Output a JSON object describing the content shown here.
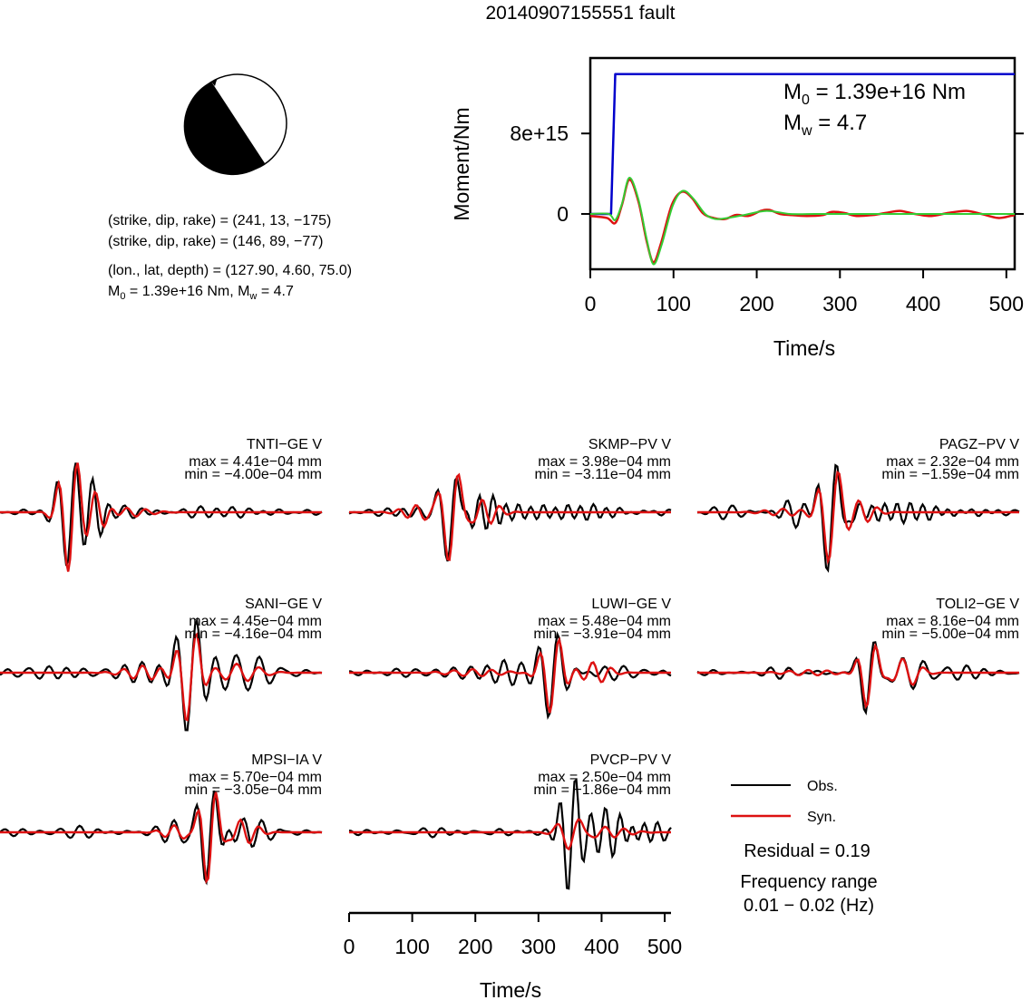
{
  "title": "20140907155551 fault",
  "mechanism": {
    "nodal_plane_1": "(strike, dip, rake) = (241, 13, −175)",
    "nodal_plane_2": "(strike, dip, rake) = (146, 89, −77)",
    "location": "(lon., lat, depth) = (127.90, 4.60, 75.0)",
    "moment_prefix": "M",
    "moment_sub": "0",
    "moment_mid": " = 1.39e+16 Nm, M",
    "mag_sub": "w",
    "mag_suffix": " = 4.7"
  },
  "moment_panel": {
    "ylabel": "Moment/Nm",
    "xlabel": "Time/s",
    "ytick_labels": [
      "0",
      "8e+15"
    ],
    "xtick_labels": [
      "0",
      "100",
      "200",
      "300",
      "400",
      "500"
    ],
    "m0_prefix": "M",
    "m0_sub": "0",
    "m0_value": " = 1.39e+16 Nm",
    "mw_prefix": "M",
    "mw_sub": "w",
    "mw_value": " = 4.7",
    "colors": {
      "cumulative": "#0000cc",
      "rate": "#dd1111",
      "rate_fit": "#33cc33"
    }
  },
  "stations": [
    {
      "name": "TNTI−GE V",
      "max": "max = 4.41e−04 mm",
      "min": "min = −4.00e−04 mm"
    },
    {
      "name": "SKMP−PV V",
      "max": "max = 3.98e−04 mm",
      "min": "min = −3.11e−04 mm"
    },
    {
      "name": "PAGZ−PV V",
      "max": "max = 2.32e−04 mm",
      "min": "min = −1.59e−04 mm"
    },
    {
      "name": "SANI−GE V",
      "max": "max = 4.45e−04 mm",
      "min": "min = −4.16e−04 mm"
    },
    {
      "name": "LUWI−GE V",
      "max": "max = 5.48e−04 mm",
      "min": "min = −3.91e−04 mm"
    },
    {
      "name": "TOLI2−GE V",
      "max": "max = 8.16e−04 mm",
      "min": "min = −5.00e−04 mm"
    },
    {
      "name": "MPSI−IA V",
      "max": "max = 5.70e−04 mm",
      "min": "min = −3.05e−04 mm"
    },
    {
      "name": "PVCP−PV V",
      "max": "max = 2.50e−04 mm",
      "min": "min = −1.86e−04 mm"
    }
  ],
  "legend": {
    "obs": "Obs.",
    "syn": "Syn.",
    "residual": "Residual = 0.19",
    "freq_label": "Frequency range",
    "freq_value": "0.01 − 0.02 (Hz)",
    "obs_color": "#000000",
    "syn_color": "#dd1111"
  },
  "time_axis": {
    "xlabel": "Time/s",
    "xtick_labels": [
      "0",
      "100",
      "200",
      "300",
      "400",
      "500"
    ]
  },
  "chart_data": [
    {
      "type": "line",
      "title": "",
      "xlabel": "Time/s",
      "ylabel": "Moment/Nm",
      "xlim": [
        0,
        510
      ],
      "ylim": [
        -5500000000000000.0,
        1.55e+16
      ],
      "series": [
        {
          "values": [
            [
              0,
              0
            ],
            [
              25,
              0
            ],
            [
              30,
              1.39e+16
            ],
            [
              510,
              1.39e+16
            ]
          ]
        },
        {
          "values": [
            [
              0,
              -200000000000000.0
            ],
            [
              20,
              -400000000000000.0
            ],
            [
              30,
              -900000000000000.0
            ],
            [
              38,
              900000000000000.0
            ],
            [
              47,
              3400000000000000.0
            ],
            [
              58,
              1200000000000000.0
            ],
            [
              68,
              -2800000000000000.0
            ],
            [
              76,
              -4800000000000000.0
            ],
            [
              85,
              -2900000000000000.0
            ],
            [
              98,
              900000000000000.0
            ],
            [
              110,
              2200000000000000.0
            ],
            [
              122,
              1600000000000000.0
            ],
            [
              135,
              100000000000000.0
            ],
            [
              148,
              -400000000000000.0
            ],
            [
              162,
              -500000000000000.0
            ],
            [
              175,
              -100000000000000.0
            ],
            [
              190,
              -200000000000000.0
            ],
            [
              205,
              300000000000000.0
            ],
            [
              215,
              400000000000000.0
            ],
            [
              228,
              0
            ],
            [
              240,
              -100000000000000.0
            ],
            [
              260,
              -200000000000000.0
            ],
            [
              280,
              -100000000000000.0
            ],
            [
              290,
              200000000000000.0
            ],
            [
              305,
              100000000000000.0
            ],
            [
              320,
              -200000000000000.0
            ],
            [
              340,
              -100000000000000.0
            ],
            [
              355,
              100000000000000.0
            ],
            [
              372,
              300000000000000.0
            ],
            [
              390,
              0
            ],
            [
              410,
              -200000000000000.0
            ],
            [
              430,
              100000000000000.0
            ],
            [
              452,
              300000000000000.0
            ],
            [
              470,
              0
            ],
            [
              490,
              -400000000000000.0
            ],
            [
              505,
              -200000000000000.0
            ],
            [
              510,
              -100000000000000.0
            ]
          ]
        },
        {
          "values": [
            [
              0,
              0
            ],
            [
              22,
              0
            ],
            [
              30,
              -600000000000000.0
            ],
            [
              38,
              1000000000000000.0
            ],
            [
              47,
              3600000000000000.0
            ],
            [
              58,
              1400000000000000.0
            ],
            [
              68,
              -2600000000000000.0
            ],
            [
              76,
              -5000000000000000.0
            ],
            [
              86,
              -3000000000000000.0
            ],
            [
              99,
              800000000000000.0
            ],
            [
              111,
              2300000000000000.0
            ],
            [
              124,
              1500000000000000.0
            ],
            [
              138,
              0
            ],
            [
              150,
              -500000000000000.0
            ],
            [
              165,
              -400000000000000.0
            ],
            [
              185,
              -100000000000000.0
            ],
            [
              212,
              300000000000000.0
            ],
            [
              240,
              0
            ],
            [
              270,
              0
            ],
            [
              300,
              0
            ],
            [
              400,
              0
            ],
            [
              510,
              0
            ]
          ]
        }
      ]
    },
    {
      "type": "line",
      "xlabel": "Time/s",
      "xlim": [
        0,
        510
      ],
      "series_names": [
        "Obs.",
        "Syn."
      ],
      "stations": [
        "TNTI−GE V",
        "SKMP−PV V",
        "PAGZ−PV V",
        "SANI−GE V",
        "LUWI−GE V",
        "TOLI2−GE V",
        "MPSI−IA V",
        "PVCP−PV V"
      ],
      "max_mm": [
        0.000441,
        0.000398,
        0.000232,
        0.000445,
        0.000548,
        0.000816,
        0.00057,
        0.00025
      ],
      "min_mm": [
        -0.0004,
        -0.000311,
        -0.000159,
        -0.000416,
        -0.000391,
        -0.0005,
        -0.000305,
        -0.000186
      ]
    }
  ]
}
